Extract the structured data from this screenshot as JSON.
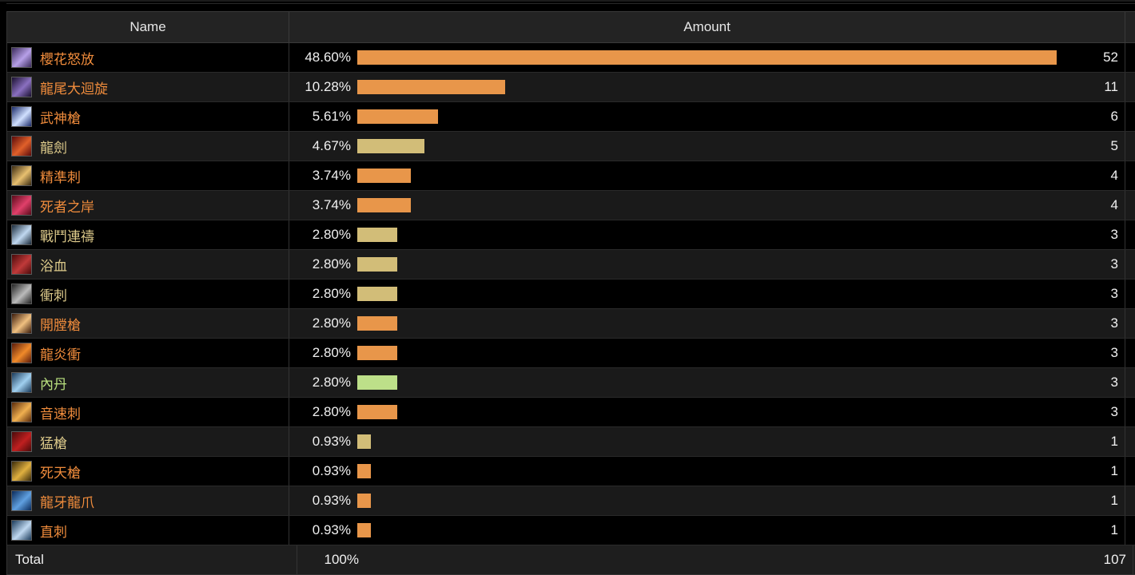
{
  "header": {
    "name_col": "Name",
    "amount_col": "Amount"
  },
  "colors": {
    "orange": "#e8964a",
    "tan": "#d2bd78",
    "green": "#bde089",
    "name_orange": "#f08c3c",
    "name_tan": "#dcc98a",
    "name_green": "#b9e07f"
  },
  "rows": [
    {
      "name": "櫻花怒放",
      "pct": "48.60%",
      "fraction": 0.486,
      "count": "52",
      "bar_color": "#e8964a",
      "name_color": "#f08c3c",
      "icon": "sakura-blossom-icon",
      "icon_bg": [
        "#3a2a5a",
        "#b7a0e8"
      ]
    },
    {
      "name": "龍尾大迴旋",
      "pct": "10.28%",
      "fraction": 0.1028,
      "count": "11",
      "bar_color": "#e8964a",
      "name_color": "#f08c3c",
      "icon": "dragon-tail-spin-icon",
      "icon_bg": [
        "#1a1030",
        "#8a70c0"
      ]
    },
    {
      "name": "武神槍",
      "pct": "5.61%",
      "fraction": 0.0561,
      "count": "6",
      "bar_color": "#e8964a",
      "name_color": "#f08c3c",
      "icon": "war-god-lance-icon",
      "icon_bg": [
        "#1b2b6a",
        "#d0e0ff"
      ]
    },
    {
      "name": "龍劍",
      "pct": "4.67%",
      "fraction": 0.0467,
      "count": "5",
      "bar_color": "#d2bd78",
      "name_color": "#dcc98a",
      "icon": "dragon-sword-icon",
      "icon_bg": [
        "#5a0a0a",
        "#e0602a"
      ]
    },
    {
      "name": "精準刺",
      "pct": "3.74%",
      "fraction": 0.0374,
      "count": "4",
      "bar_color": "#e8964a",
      "name_color": "#f08c3c",
      "icon": "precision-thrust-icon",
      "icon_bg": [
        "#3a2a10",
        "#e8c070"
      ]
    },
    {
      "name": "死者之岸",
      "pct": "3.74%",
      "fraction": 0.0374,
      "count": "4",
      "bar_color": "#e8964a",
      "name_color": "#f08c3c",
      "icon": "shore-of-dead-icon",
      "icon_bg": [
        "#5a0a1a",
        "#e0406a"
      ]
    },
    {
      "name": "戰鬥連禱",
      "pct": "2.80%",
      "fraction": 0.028,
      "count": "3",
      "bar_color": "#d2bd78",
      "name_color": "#dcc98a",
      "icon": "battle-litany-icon",
      "icon_bg": [
        "#1a2a3a",
        "#c0d8f0"
      ]
    },
    {
      "name": "浴血",
      "pct": "2.80%",
      "fraction": 0.028,
      "count": "3",
      "bar_color": "#d2bd78",
      "name_color": "#dcc98a",
      "icon": "blood-bath-icon",
      "icon_bg": [
        "#4a0a0a",
        "#c03a3a"
      ]
    },
    {
      "name": "衝刺",
      "pct": "2.80%",
      "fraction": 0.028,
      "count": "3",
      "bar_color": "#d2bd78",
      "name_color": "#dcc98a",
      "icon": "sprint-icon",
      "icon_bg": [
        "#222222",
        "#bbbbbb"
      ]
    },
    {
      "name": "開膛槍",
      "pct": "2.80%",
      "fraction": 0.028,
      "count": "3",
      "bar_color": "#e8964a",
      "name_color": "#f08c3c",
      "icon": "disembowel-icon",
      "icon_bg": [
        "#3a1a0a",
        "#f0c080"
      ]
    },
    {
      "name": "龍炎衝",
      "pct": "2.80%",
      "fraction": 0.028,
      "count": "3",
      "bar_color": "#e8964a",
      "name_color": "#f08c3c",
      "icon": "dragonfire-dive-icon",
      "icon_bg": [
        "#5a1a0a",
        "#f08a2a"
      ]
    },
    {
      "name": "內丹",
      "pct": "2.80%",
      "fraction": 0.028,
      "count": "3",
      "bar_color": "#bde089",
      "name_color": "#b9e07f",
      "icon": "second-wind-icon",
      "icon_bg": [
        "#1a3a5a",
        "#a0d0f0"
      ]
    },
    {
      "name": "音速刺",
      "pct": "2.80%",
      "fraction": 0.028,
      "count": "3",
      "bar_color": "#e8964a",
      "name_color": "#f08c3c",
      "icon": "sonic-thrust-icon",
      "icon_bg": [
        "#5a2a0a",
        "#f0b050"
      ]
    },
    {
      "name": "猛槍",
      "pct": "0.93%",
      "fraction": 0.0093,
      "count": "1",
      "bar_color": "#d2bd78",
      "name_color": "#dcc98a",
      "icon": "lance-charge-icon",
      "icon_bg": [
        "#4a0a0a",
        "#c02020"
      ]
    },
    {
      "name": "死天槍",
      "pct": "0.93%",
      "fraction": 0.0093,
      "count": "1",
      "bar_color": "#e8964a",
      "name_color": "#f08c3c",
      "icon": "doom-spike-icon",
      "icon_bg": [
        "#3a2a0a",
        "#e0b040"
      ]
    },
    {
      "name": "龍牙龍爪",
      "pct": "0.93%",
      "fraction": 0.0093,
      "count": "1",
      "bar_color": "#e8964a",
      "name_color": "#f08c3c",
      "icon": "fang-and-claw-icon",
      "icon_bg": [
        "#0a2a5a",
        "#60a0e0"
      ]
    },
    {
      "name": "直刺",
      "pct": "0.93%",
      "fraction": 0.0093,
      "count": "1",
      "bar_color": "#e8964a",
      "name_color": "#f08c3c",
      "icon": "true-thrust-icon",
      "icon_bg": [
        "#1a3a5a",
        "#c0d8f0"
      ]
    }
  ],
  "total": {
    "label": "Total",
    "pct": "100%",
    "count": "107"
  }
}
